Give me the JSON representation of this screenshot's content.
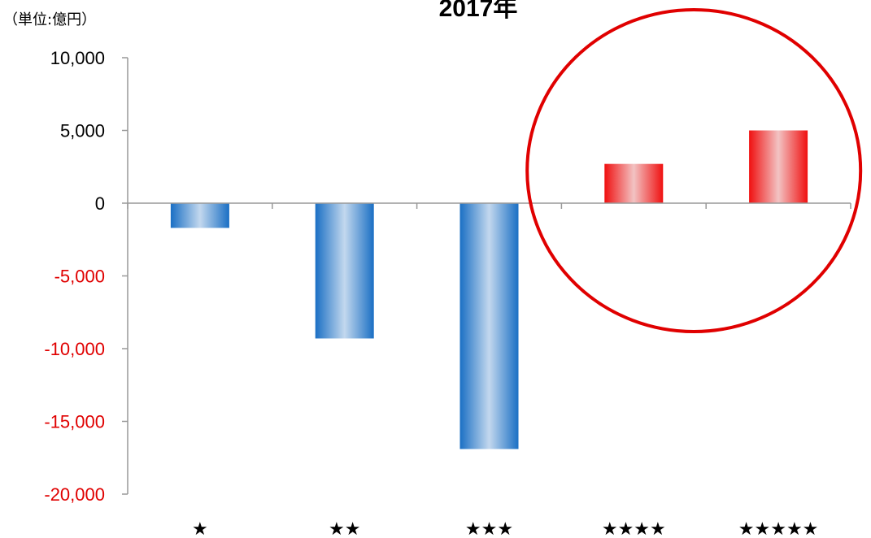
{
  "chart_data": {
    "type": "bar",
    "title": "2017年",
    "unit_label": "（単位:億円）",
    "categories": [
      "★",
      "★★",
      "★★★",
      "★★★★",
      "★★★★★"
    ],
    "values": [
      -1700,
      -9300,
      -16900,
      2700,
      5000
    ],
    "ylim": [
      -20000,
      10000
    ],
    "yticks": [
      10000,
      5000,
      0,
      -5000,
      -10000,
      -15000,
      -20000
    ],
    "ytick_labels": [
      "10,000",
      "5,000",
      "0",
      "-5,000",
      "-10,000",
      "-15,000",
      "-20,000"
    ],
    "grid": false,
    "legend": "none",
    "colors": {
      "negative_bar": "#1a6fc4",
      "negative_bar_highlight": "#c3d8ee",
      "positive_bar": "#f01010",
      "positive_bar_highlight": "#f2c3c3",
      "positive_tick_label": "#000000",
      "negative_tick_label": "#e00000",
      "axis": "#999999",
      "highlight_circle": "#e00000"
    },
    "highlight": {
      "shape": "circle",
      "categories": [
        "★★★★",
        "★★★★★"
      ]
    }
  }
}
